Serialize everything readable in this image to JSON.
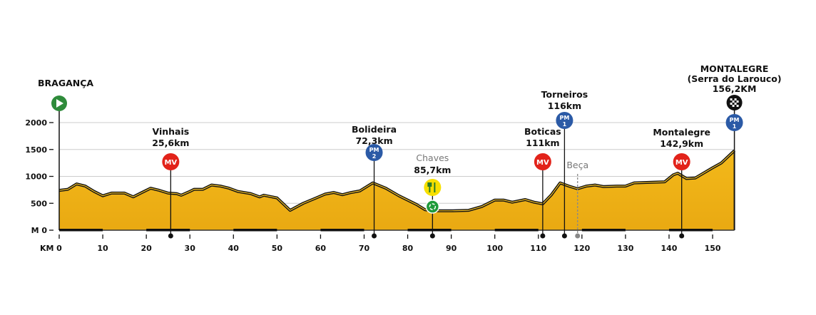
{
  "chart_data": {
    "type": "area",
    "title": "",
    "xlabel": "KM",
    "ylabel": "M",
    "xlim": [
      0,
      155
    ],
    "ylim": [
      0,
      2000
    ],
    "grid": true,
    "x_ticks": [
      0,
      10,
      20,
      30,
      40,
      50,
      60,
      70,
      80,
      90,
      100,
      110,
      120,
      130,
      140,
      150
    ],
    "y_ticks": [
      0,
      500,
      1000,
      1500,
      2000
    ],
    "y_tick_labels": [
      "M 0",
      "500",
      "1000",
      "1500",
      "2000"
    ],
    "colors": {
      "fill": "#f2b518",
      "line": "#111111",
      "mv": "#e2231a",
      "pm": "#2b5aa6",
      "start": "#2e8b3a",
      "feed": "#f7e000",
      "recycle": "#1e9a3a",
      "grid": "#cccccc"
    },
    "profile": {
      "km": [
        0,
        2,
        4,
        6,
        8,
        10,
        12,
        15,
        17,
        19,
        21,
        23,
        25,
        27,
        28,
        30,
        31,
        33,
        35,
        37,
        39,
        41,
        44,
        46,
        47,
        50,
        53,
        56,
        59,
        61,
        63,
        65,
        67,
        69,
        72,
        75,
        78,
        82,
        84,
        86,
        90,
        94,
        97,
        100,
        102,
        104,
        107,
        109,
        111,
        113,
        115,
        117,
        119,
        121,
        123,
        125,
        128,
        130,
        132,
        136,
        139,
        141,
        142,
        144,
        146,
        150,
        152,
        155
      ],
      "elevation_m": [
        740,
        760,
        860,
        820,
        720,
        640,
        690,
        690,
        620,
        700,
        780,
        740,
        690,
        680,
        650,
        720,
        760,
        760,
        840,
        820,
        780,
        720,
        680,
        620,
        650,
        600,
        370,
        500,
        600,
        670,
        700,
        660,
        700,
        730,
        880,
        780,
        640,
        480,
        380,
        360,
        360,
        370,
        440,
        560,
        560,
        520,
        570,
        520,
        490,
        660,
        880,
        820,
        770,
        820,
        840,
        810,
        820,
        820,
        880,
        890,
        900,
        1030,
        1060,
        960,
        970,
        1160,
        1250,
        1480
      ]
    },
    "start": {
      "name": "BRAGANÇA",
      "km": 0,
      "icon": "start-play-icon"
    },
    "finish": {
      "name": "MONTALEGRE",
      "subtitle": "(Serra do Larouco)",
      "distance": "156,2KM",
      "km": 155,
      "icons": [
        "finish-flag-icon"
      ],
      "badge": {
        "type": "PM",
        "cat": "1"
      }
    },
    "points": [
      {
        "name": "Vinhais",
        "distance": "25,6km",
        "km": 25.6,
        "badge": {
          "type": "MV"
        }
      },
      {
        "name": "Bolideira",
        "distance": "72,3km",
        "km": 72.3,
        "badge": {
          "type": "PM",
          "cat": "2"
        }
      },
      {
        "name": "Chaves",
        "distance": "85,7km",
        "km": 85.7,
        "icons": [
          "feed-zone-icon",
          "recycle-zone-icon"
        ]
      },
      {
        "name": "Boticas",
        "distance": "111km",
        "km": 111,
        "badge": {
          "type": "MV"
        }
      },
      {
        "name": "Torneiros",
        "distance": "116km",
        "km": 116,
        "badge": {
          "type": "PM",
          "cat": "1"
        }
      },
      {
        "name": "Beça",
        "distance": "",
        "km": 119,
        "minor": true
      },
      {
        "name": "Montalegre",
        "distance": "142,9km",
        "km": 142.9,
        "badge": {
          "type": "MV"
        }
      }
    ]
  }
}
